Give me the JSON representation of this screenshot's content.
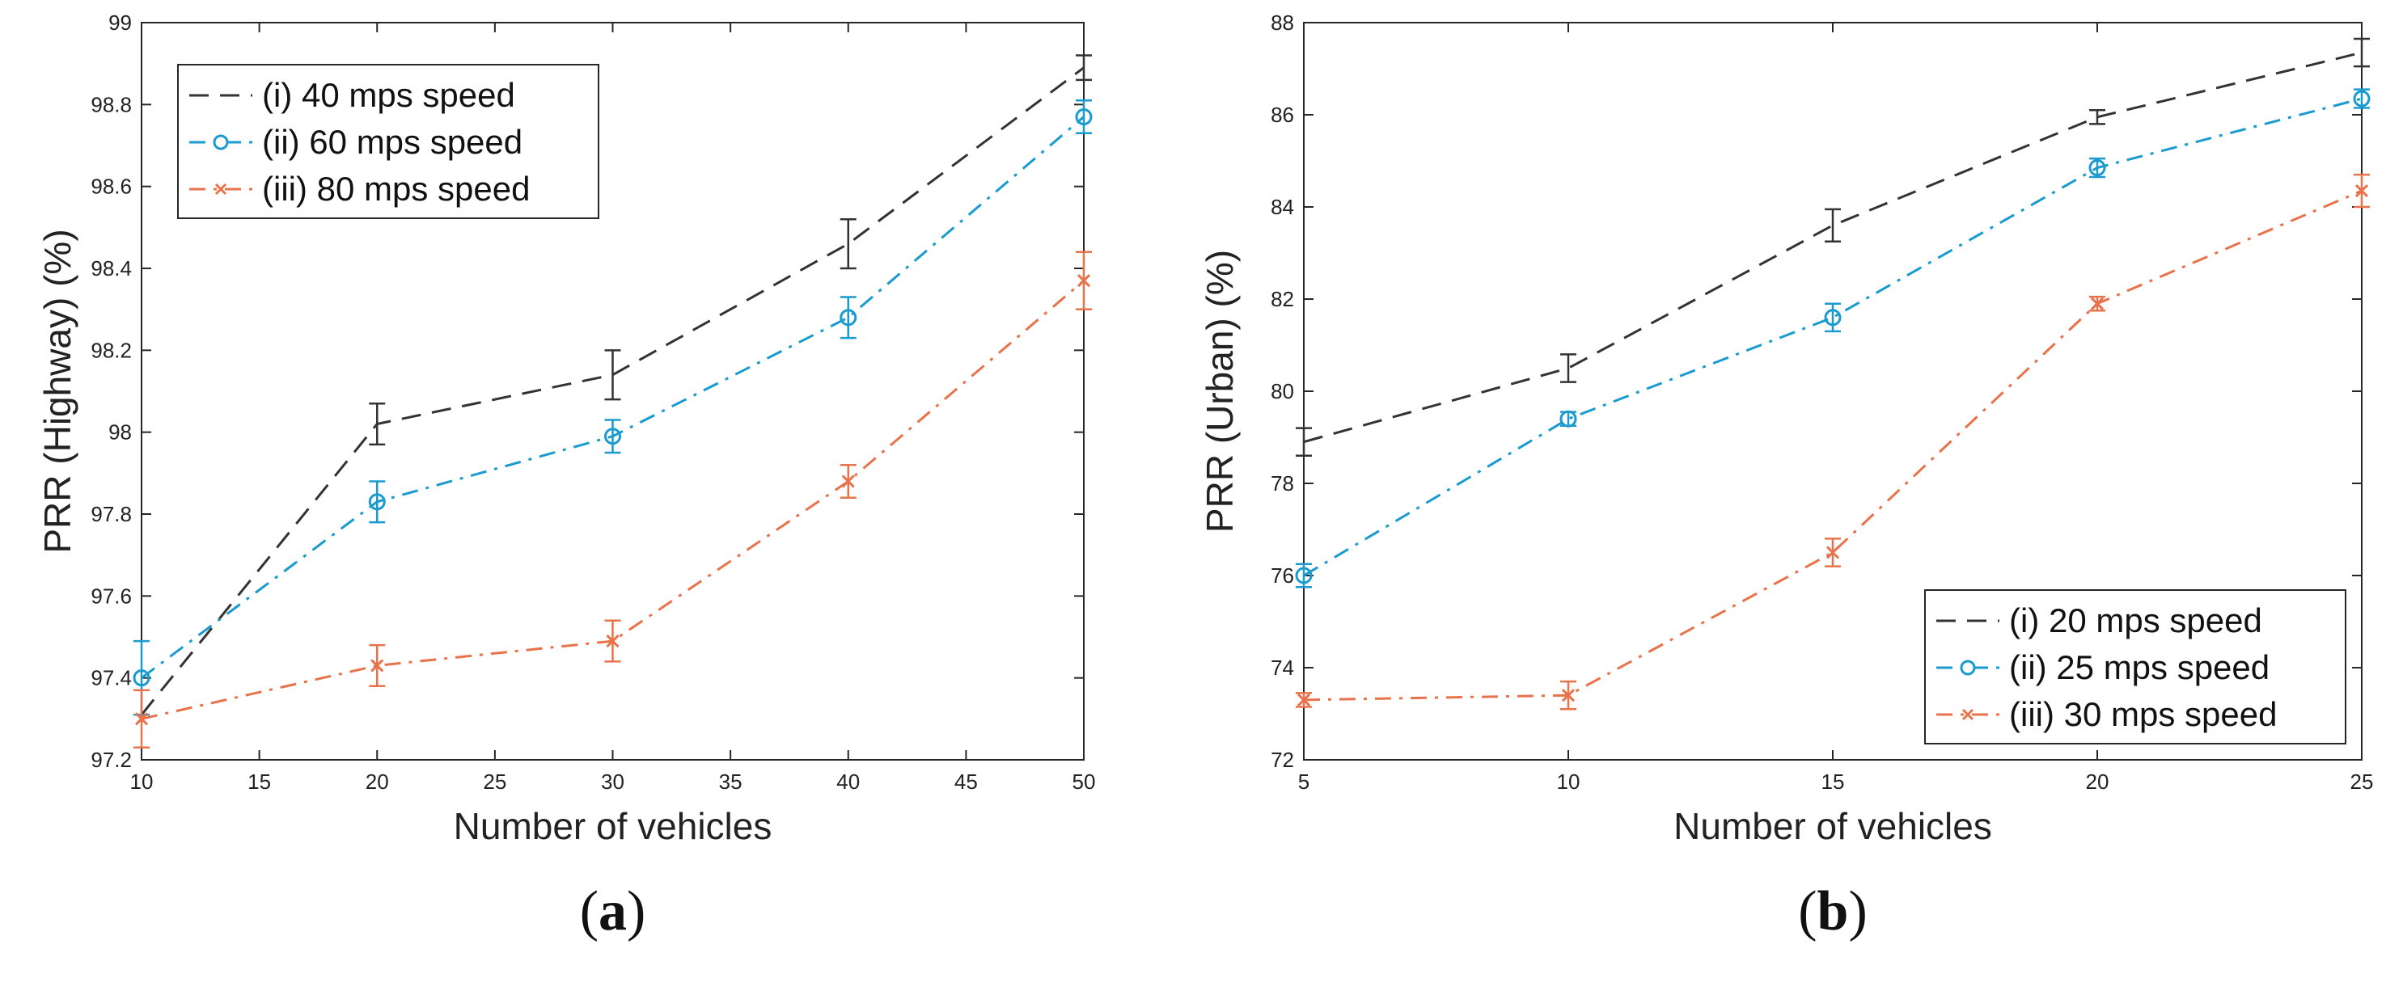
{
  "chart_data": [
    {
      "type": "line",
      "panel_label": "(a)",
      "panel_letter": "a",
      "xlabel": "Number of vehicles",
      "ylabel": "PRR (Highway) (%)",
      "xlim": [
        10,
        50
      ],
      "ylim": [
        97.2,
        99
      ],
      "xticks": [
        10,
        15,
        20,
        25,
        30,
        35,
        40,
        45,
        50
      ],
      "yticks": [
        97.2,
        97.4,
        97.6,
        97.8,
        98,
        98.2,
        98.4,
        98.6,
        98.8,
        99
      ],
      "ytick_labels": [
        "97.2",
        "97.4",
        "97.6",
        "97.8",
        "98",
        "98.2",
        "98.4",
        "98.6",
        "98.8",
        "99"
      ],
      "grid": false,
      "legend_position": "top-left",
      "x": [
        10,
        20,
        30,
        40,
        50
      ],
      "series": [
        {
          "name": "(i) 40 mps speed",
          "values": [
            97.31,
            98.02,
            98.14,
            98.46,
            98.89
          ],
          "errors": [
            0.0,
            0.05,
            0.06,
            0.06,
            0.03
          ],
          "color": "#333333",
          "style": "dashed",
          "marker": "none"
        },
        {
          "name": "(ii) 60 mps speed",
          "values": [
            97.4,
            97.83,
            97.99,
            98.28,
            98.77
          ],
          "errors": [
            0.09,
            0.05,
            0.04,
            0.05,
            0.04
          ],
          "color": "#1a9bd0",
          "style": "dashdot",
          "marker": "circle"
        },
        {
          "name": "(iii) 80 mps speed",
          "values": [
            97.3,
            97.43,
            97.49,
            97.88,
            98.37
          ],
          "errors": [
            0.07,
            0.05,
            0.05,
            0.04,
            0.07
          ],
          "color": "#e8734a",
          "style": "dashdot",
          "marker": "x"
        }
      ]
    },
    {
      "type": "line",
      "panel_label": "(b)",
      "panel_letter": "b",
      "xlabel": "Number of vehicles",
      "ylabel": "PRR (Urban) (%)",
      "xlim": [
        5,
        25
      ],
      "ylim": [
        72,
        88
      ],
      "xticks": [
        5,
        10,
        15,
        20,
        25
      ],
      "yticks": [
        72,
        74,
        76,
        78,
        80,
        82,
        84,
        86,
        88
      ],
      "ytick_labels": [
        "72",
        "74",
        "76",
        "78",
        "80",
        "82",
        "84",
        "86",
        "88"
      ],
      "grid": false,
      "legend_position": "bottom-right",
      "x": [
        5,
        10,
        15,
        20,
        25
      ],
      "series": [
        {
          "name": "(i) 20 mps speed",
          "values": [
            78.9,
            80.5,
            83.6,
            85.95,
            87.35
          ],
          "errors": [
            0.3,
            0.3,
            0.35,
            0.15,
            0.3
          ],
          "color": "#333333",
          "style": "dashed",
          "marker": "none"
        },
        {
          "name": "(ii) 25 mps speed",
          "values": [
            76.0,
            79.4,
            81.6,
            84.85,
            86.35
          ],
          "errors": [
            0.25,
            0.15,
            0.3,
            0.2,
            0.2
          ],
          "color": "#1a9bd0",
          "style": "dashdot",
          "marker": "circle"
        },
        {
          "name": "(iii) 30 mps speed",
          "values": [
            73.3,
            73.4,
            76.5,
            81.9,
            84.35
          ],
          "errors": [
            0.15,
            0.3,
            0.3,
            0.15,
            0.35
          ],
          "color": "#e8734a",
          "style": "dashdot",
          "marker": "x"
        }
      ]
    }
  ]
}
